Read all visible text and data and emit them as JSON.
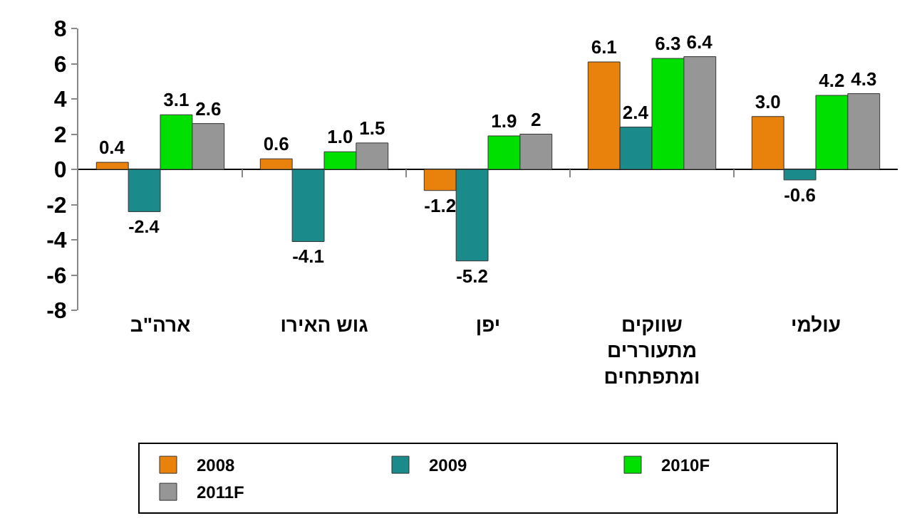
{
  "chart_data": {
    "type": "bar",
    "categories": [
      "ארה\"ב",
      "גוש האירו",
      "יפן",
      "שווקים מתעוררים ומתפתחים",
      "עולמי"
    ],
    "series": [
      {
        "name": "2008",
        "color": "#e8820c",
        "values": [
          0.4,
          0.6,
          -1.2,
          6.1,
          3.0
        ],
        "value_labels": [
          "0.4",
          "0.6",
          "-1.2",
          "6.1",
          "3.0"
        ]
      },
      {
        "name": "2009",
        "color": "#1a8a8a",
        "values": [
          -2.4,
          -4.1,
          -5.2,
          2.4,
          -0.6
        ],
        "value_labels": [
          "-2.4",
          "-4.1",
          "-5.2",
          "2.4",
          "-0.6"
        ]
      },
      {
        "name": "2010F",
        "color": "#00e000",
        "values": [
          3.1,
          1.0,
          1.9,
          6.3,
          4.2
        ],
        "value_labels": [
          "3.1",
          "1.0",
          "1.9",
          "6.3",
          "4.2"
        ]
      },
      {
        "name": "2011F",
        "color": "#969696",
        "values": [
          2.6,
          1.5,
          2,
          6.4,
          4.3
        ],
        "value_labels": [
          "2.6",
          "1.5",
          "2",
          "6.4",
          "4.3"
        ]
      }
    ],
    "ylim": [
      -8,
      8
    ],
    "yticks": [
      -8,
      -6,
      -4,
      -2,
      0,
      2,
      4,
      6,
      8
    ],
    "legend": "bottom"
  }
}
